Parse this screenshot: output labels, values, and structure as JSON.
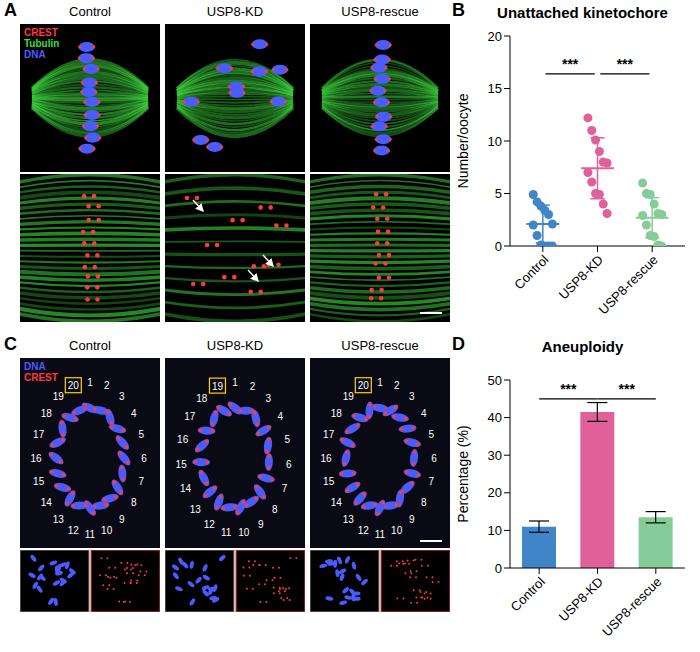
{
  "panel_a": {
    "panel_label": "A",
    "columns": [
      "Control",
      "USP8-KD",
      "USP8-rescue"
    ],
    "channels": [
      {
        "name": "CREST",
        "color": "#ff3a3a"
      },
      {
        "name": "Tubulin",
        "color": "#3fdc3f"
      },
      {
        "name": "DNA",
        "color": "#4a5cff"
      }
    ]
  },
  "panel_c": {
    "panel_label": "C",
    "columns": [
      "Control",
      "USP8-KD",
      "USP8-rescue"
    ],
    "channels": [
      {
        "name": "DNA",
        "color": "#4a5cff"
      },
      {
        "name": "CREST",
        "color": "#ff3a3a"
      }
    ],
    "chromosome_labels": [
      [
        1,
        2,
        3,
        4,
        5,
        6,
        7,
        8,
        9,
        10,
        11,
        12,
        13,
        14,
        15,
        16,
        17,
        18,
        19,
        20
      ],
      [
        1,
        2,
        3,
        4,
        5,
        6,
        7,
        8,
        9,
        10,
        11,
        12,
        13,
        14,
        15,
        16,
        17,
        18,
        19
      ],
      [
        1,
        2,
        3,
        4,
        5,
        6,
        7,
        8,
        9,
        10,
        11,
        12,
        13,
        14,
        15,
        16,
        17,
        18,
        19,
        20
      ]
    ],
    "highlighted": [
      20,
      19,
      20
    ]
  },
  "chart_data": [
    {
      "panel_label": "B",
      "type": "scatter",
      "title": "Unattached kinetochore",
      "y_label": "Number/oocyte",
      "categories": [
        "Control",
        "USP8-KD",
        "USP8-rescue"
      ],
      "colors": [
        "#3f86c8",
        "#e0609a",
        "#86cc98"
      ],
      "points": [
        [
          4.9,
          4.2,
          3.8,
          3.4,
          3.0,
          2.1,
          2.0,
          1.0,
          0.1,
          0,
          0,
          0
        ],
        [
          12.2,
          11,
          10.1,
          9,
          8,
          7.9,
          7,
          6.1,
          5,
          4.9,
          4,
          3.1
        ],
        [
          6,
          5,
          4.9,
          4,
          3.1,
          3,
          2.9,
          2,
          1,
          0.9,
          0.1,
          0
        ]
      ],
      "mean": [
        2.1,
        7.4,
        2.7
      ],
      "sd": [
        1.8,
        2.9,
        1.9
      ],
      "ylim": [
        0,
        20
      ],
      "yticks": [
        0,
        5,
        10,
        15,
        20
      ],
      "annotations": [
        {
          "text": "***",
          "from": "Control",
          "to": "USP8-KD"
        },
        {
          "text": "***",
          "from": "USP8-KD",
          "to": "USP8-rescue"
        }
      ]
    },
    {
      "panel_label": "D",
      "type": "bar",
      "title": "Aneuploidy",
      "y_label": "Percentage (%)",
      "categories": [
        "Control",
        "USP8-KD",
        "USP8-rescue"
      ],
      "values": [
        11,
        41.5,
        13.5
      ],
      "errors": [
        1.5,
        2.5,
        1.5
      ],
      "colors": [
        "#3f86c8",
        "#e0609a",
        "#86cc98"
      ],
      "ylim": [
        0,
        50
      ],
      "yticks": [
        0,
        10,
        20,
        30,
        40,
        50
      ],
      "annotations": [
        {
          "text": "***",
          "from": "Control",
          "to": "USP8-KD"
        },
        {
          "text": "***",
          "from": "USP8-KD",
          "to": "USP8-rescue"
        }
      ]
    }
  ]
}
